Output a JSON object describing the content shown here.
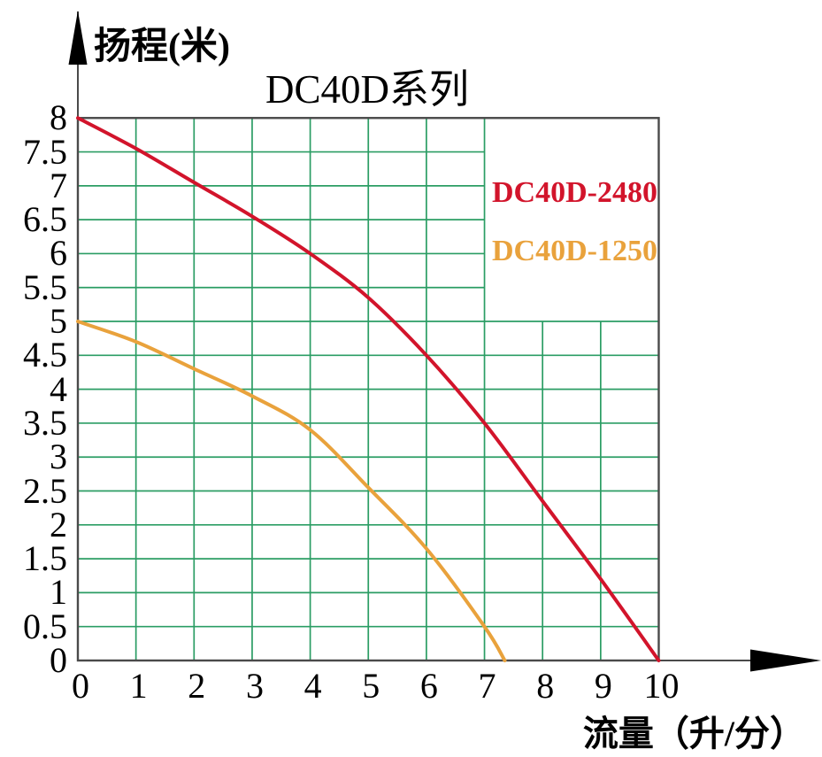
{
  "chart_data": {
    "type": "line",
    "title": "DC40D系列",
    "xlabel": "流量（升/分）",
    "ylabel": "扬程(米)",
    "xlim": [
      0,
      10
    ],
    "ylim": [
      0,
      8
    ],
    "x_ticks": [
      0,
      1,
      2,
      3,
      4,
      5,
      6,
      7,
      8,
      9,
      10
    ],
    "y_ticks": [
      0,
      0.5,
      1,
      1.5,
      2,
      2.5,
      3,
      3.5,
      4,
      4.5,
      5,
      5.5,
      6,
      6.5,
      7,
      7.5,
      8
    ],
    "grid": true,
    "grid_clear_region": {
      "x": [
        7,
        10
      ],
      "y": [
        5,
        8
      ]
    },
    "legend_position": "upper-right-inside",
    "series": [
      {
        "name": "DC40D-2480",
        "color": "#d2142b",
        "points": [
          [
            0,
            8
          ],
          [
            1,
            7.55
          ],
          [
            2,
            7.05
          ],
          [
            3,
            6.55
          ],
          [
            4,
            6.0
          ],
          [
            5,
            5.35
          ],
          [
            6,
            4.5
          ],
          [
            7,
            3.5
          ],
          [
            8,
            2.35
          ],
          [
            9,
            1.2
          ],
          [
            10,
            0
          ]
        ]
      },
      {
        "name": "DC40D-1250",
        "color": "#e9a23c",
        "points": [
          [
            0,
            5
          ],
          [
            1,
            4.7
          ],
          [
            2,
            4.3
          ],
          [
            3,
            3.9
          ],
          [
            4,
            3.4
          ],
          [
            5,
            2.55
          ],
          [
            6,
            1.65
          ],
          [
            7,
            0.5
          ],
          [
            7.35,
            0
          ]
        ]
      }
    ]
  },
  "style_colors": {
    "grid": "#2b9d64",
    "border": "#4a4a4a",
    "axis_arrow": "#000000",
    "text": "#000000"
  }
}
